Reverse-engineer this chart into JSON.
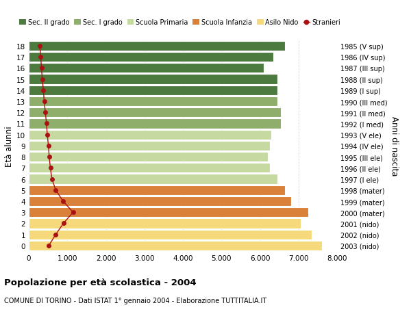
{
  "ages": [
    0,
    1,
    2,
    3,
    4,
    5,
    6,
    7,
    8,
    9,
    10,
    11,
    12,
    13,
    14,
    15,
    16,
    17,
    18
  ],
  "right_labels": [
    "2003 (nido)",
    "2002 (nido)",
    "2001 (nido)",
    "2000 (mater)",
    "1999 (mater)",
    "1998 (mater)",
    "1997 (I ele)",
    "1996 (II ele)",
    "1995 (III ele)",
    "1994 (IV ele)",
    "1993 (V ele)",
    "1992 (I med)",
    "1991 (II med)",
    "1990 (III med)",
    "1989 (I sup)",
    "1988 (II sup)",
    "1987 (III sup)",
    "1986 (IV sup)",
    "1985 (V sup)"
  ],
  "bar_values": [
    7600,
    7350,
    7050,
    7250,
    6800,
    6650,
    6450,
    6250,
    6200,
    6250,
    6300,
    6550,
    6550,
    6450,
    6450,
    6450,
    6100,
    6350,
    6650
  ],
  "stranieri_values": [
    520,
    700,
    900,
    1150,
    890,
    700,
    600,
    560,
    530,
    510,
    480,
    460,
    430,
    400,
    380,
    350,
    330,
    310,
    290
  ],
  "bar_colors": [
    "#f5d97a",
    "#f5d97a",
    "#f5d97a",
    "#d9813a",
    "#d9813a",
    "#d9813a",
    "#c5d9a0",
    "#c5d9a0",
    "#c5d9a0",
    "#c5d9a0",
    "#c5d9a0",
    "#8fad6b",
    "#8fad6b",
    "#8fad6b",
    "#4d7a3e",
    "#4d7a3e",
    "#4d7a3e",
    "#4d7a3e",
    "#4d7a3e"
  ],
  "legend_labels": [
    "Sec. II grado",
    "Sec. I grado",
    "Scuola Primaria",
    "Scuola Infanzia",
    "Asilo Nido",
    "Stranieri"
  ],
  "legend_colors": [
    "#4d7a3e",
    "#8fad6b",
    "#c5d9a0",
    "#d9813a",
    "#f5d97a",
    "#aa1111"
  ],
  "stranieri_color": "#aa1111",
  "title": "Popolazione per età scolastica - 2004",
  "subtitle": "COMUNE DI TORINO - Dati ISTAT 1° gennaio 2004 - Elaborazione TUTTITALIA.IT",
  "ylabel": "Età alunni",
  "right_ylabel": "Anni di nascita",
  "xlim": [
    0,
    8000
  ],
  "xticks": [
    0,
    1000,
    2000,
    3000,
    4000,
    5000,
    6000,
    7000,
    8000
  ],
  "grid_color": "#cccccc",
  "background_color": "#ffffff",
  "bar_height": 0.88
}
